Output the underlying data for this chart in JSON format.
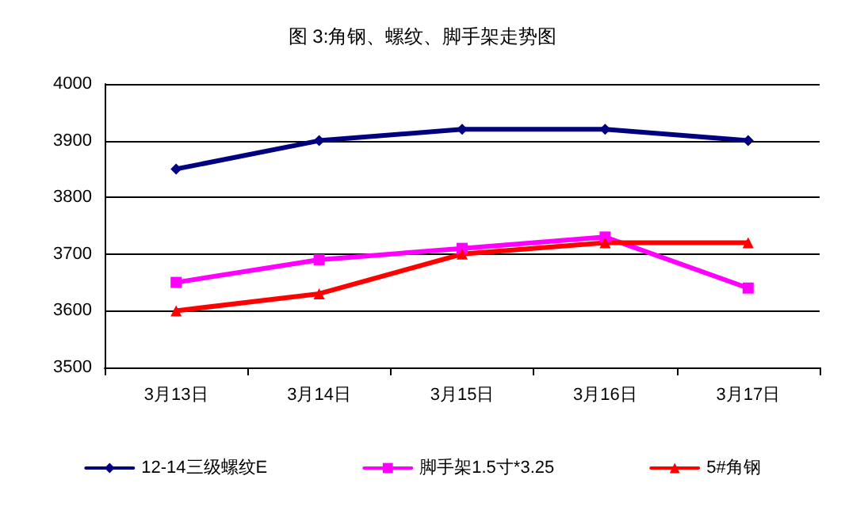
{
  "chart_data": {
    "type": "line",
    "title": "图 3:角钢、螺纹、脚手架走势图",
    "categories": [
      "3月13日",
      "3月14日",
      "3月15日",
      "3月16日",
      "3月17日"
    ],
    "series": [
      {
        "name": "12-14三级螺纹E",
        "color": "#000080",
        "marker": "diamond",
        "values": [
          3850,
          3900,
          3920,
          3920,
          3900
        ]
      },
      {
        "name": "脚手架1.5寸*3.25",
        "color": "#ff00ff",
        "marker": "square",
        "values": [
          3650,
          3690,
          3710,
          3730,
          3640
        ]
      },
      {
        "name": "5#角钢",
        "color": "#ff0000",
        "marker": "triangle",
        "values": [
          3600,
          3630,
          3700,
          3720,
          3720
        ]
      }
    ],
    "ylim": [
      3500,
      4000
    ],
    "yticks": [
      3500,
      3600,
      3700,
      3800,
      3900,
      4000
    ],
    "grid": "y",
    "legend": "bottom",
    "line_style": "solid"
  }
}
